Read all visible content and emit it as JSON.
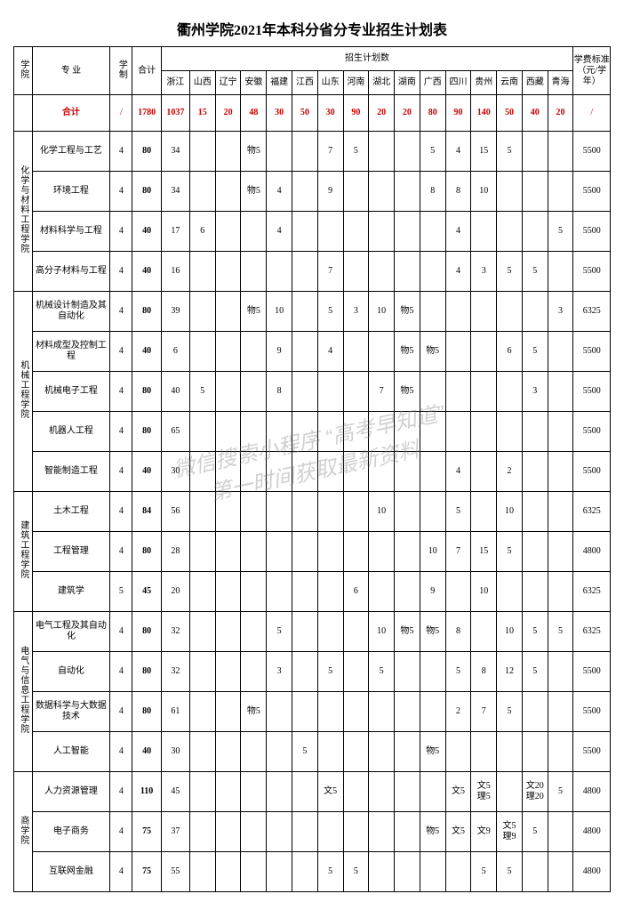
{
  "title": "衢州学院2021年本科分省分专业招生计划表",
  "header": {
    "college": "学院",
    "major": "专 业",
    "schooling": "学制",
    "total": "合计",
    "plan_group": "招生计划数",
    "fee": "学费标准（元/学年）",
    "provinces": [
      "浙江",
      "山西",
      "辽宁",
      "安徽",
      "福建",
      "江西",
      "山东",
      "河南",
      "湖北",
      "湖南",
      "广西",
      "四川",
      "贵州",
      "云南",
      "西藏",
      "青海"
    ]
  },
  "sum_row": {
    "label": "合计",
    "schooling": "/",
    "total": "1780",
    "cells": [
      "1037",
      "15",
      "20",
      "48",
      "30",
      "50",
      "30",
      "90",
      "20",
      "20",
      "80",
      "90",
      "140",
      "50",
      "40",
      "20"
    ],
    "fee": "/"
  },
  "groups": [
    {
      "college": "化学与材料工程学院",
      "rows": [
        {
          "major": "化学工程与工艺",
          "sch": "4",
          "tot": "80",
          "c": [
            "34",
            "",
            "",
            "物5",
            "",
            "",
            "7",
            "5",
            "",
            "",
            "5",
            "4",
            "15",
            "5",
            "",
            ""
          ],
          "fee": "5500"
        },
        {
          "major": "环境工程",
          "sch": "4",
          "tot": "80",
          "c": [
            "34",
            "",
            "",
            "物5",
            "4",
            "",
            "9",
            "",
            "",
            "",
            "8",
            "8",
            "10",
            "",
            "",
            ""
          ],
          "fee": "5500"
        },
        {
          "major": "材料科学与工程",
          "sch": "4",
          "tot": "40",
          "c": [
            "17",
            "6",
            "",
            "",
            "4",
            "",
            "",
            "",
            "",
            "",
            "",
            "4",
            "",
            "",
            "",
            "5"
          ],
          "fee": "5500"
        },
        {
          "major": "高分子材料与工程",
          "sch": "4",
          "tot": "40",
          "c": [
            "16",
            "",
            "",
            "",
            "",
            "",
            "7",
            "",
            "",
            "",
            "",
            "4",
            "3",
            "5",
            "5",
            ""
          ],
          "fee": "5500"
        }
      ]
    },
    {
      "college": "机械工程学院",
      "rows": [
        {
          "major": "机械设计制造及其自动化",
          "sch": "4",
          "tot": "80",
          "c": [
            "39",
            "",
            "",
            "物5",
            "10",
            "",
            "5",
            "3",
            "10",
            "物5",
            "",
            "",
            "",
            "",
            "",
            "3"
          ],
          "fee": "6325"
        },
        {
          "major": "材料成型及控制工程",
          "sch": "4",
          "tot": "40",
          "c": [
            "6",
            "",
            "",
            "",
            "9",
            "",
            "4",
            "",
            "",
            "物5",
            "物5",
            "",
            "",
            "6",
            "5",
            ""
          ],
          "fee": "5500"
        },
        {
          "major": "机械电子工程",
          "sch": "4",
          "tot": "80",
          "c": [
            "40",
            "5",
            "",
            "",
            "8",
            "",
            "",
            "",
            "7",
            "物5",
            "",
            "",
            "",
            "",
            "3",
            ""
          ],
          "fee": "5500"
        },
        {
          "major": "机器人工程",
          "sch": "4",
          "tot": "80",
          "c": [
            "65",
            "",
            "",
            "",
            "",
            "",
            "",
            "",
            "",
            "",
            "",
            "",
            "",
            "",
            "",
            ""
          ],
          "fee": "5500"
        },
        {
          "major": "智能制造工程",
          "sch": "4",
          "tot": "40",
          "c": [
            "30",
            "",
            "",
            "",
            "",
            "",
            "",
            "",
            "",
            "",
            "",
            "4",
            "",
            "2",
            "",
            ""
          ],
          "fee": "5500"
        }
      ]
    },
    {
      "college": "建筑工程学院",
      "rows": [
        {
          "major": "土木工程",
          "sch": "4",
          "tot": "84",
          "c": [
            "56",
            "",
            "",
            "",
            "",
            "",
            "",
            "",
            "10",
            "",
            "",
            "5",
            "",
            "10",
            "",
            ""
          ],
          "fee": "6325"
        },
        {
          "major": "工程管理",
          "sch": "4",
          "tot": "80",
          "c": [
            "28",
            "",
            "",
            "",
            "",
            "",
            "",
            "",
            "",
            "",
            "10",
            "7",
            "15",
            "5",
            "",
            ""
          ],
          "fee": "4800"
        },
        {
          "major": "建筑学",
          "sch": "5",
          "tot": "45",
          "c": [
            "20",
            "",
            "",
            "",
            "",
            "",
            "",
            "6",
            "",
            "",
            "9",
            "",
            "10",
            "",
            "",
            ""
          ],
          "fee": "6325"
        }
      ]
    },
    {
      "college": "电气与信息工程学院",
      "rows": [
        {
          "major": "电气工程及其自动化",
          "sch": "4",
          "tot": "80",
          "c": [
            "32",
            "",
            "",
            "",
            "5",
            "",
            "",
            "",
            "10",
            "物5",
            "物5",
            "8",
            "",
            "10",
            "5",
            "5"
          ],
          "fee": "6325"
        },
        {
          "major": "自动化",
          "sch": "4",
          "tot": "80",
          "c": [
            "32",
            "",
            "",
            "",
            "3",
            "",
            "5",
            "",
            "5",
            "",
            "",
            "5",
            "8",
            "12",
            "5",
            ""
          ],
          "fee": "5500"
        },
        {
          "major": "数据科学与大数据技术",
          "sch": "4",
          "tot": "80",
          "c": [
            "61",
            "",
            "",
            "物5",
            "",
            "",
            "",
            "",
            "",
            "",
            "",
            "2",
            "7",
            "5",
            "",
            ""
          ],
          "fee": "5500"
        },
        {
          "major": "人工智能",
          "sch": "4",
          "tot": "40",
          "c": [
            "30",
            "",
            "",
            "",
            "",
            "5",
            "",
            "",
            "",
            "",
            "物5",
            "",
            "",
            "",
            "",
            ""
          ],
          "fee": "5500"
        }
      ]
    },
    {
      "college": "商学院",
      "rows": [
        {
          "major": "人力资源管理",
          "sch": "4",
          "tot": "110",
          "c": [
            "45",
            "",
            "",
            "",
            "",
            "",
            "文5",
            "",
            "",
            "",
            "",
            "文5",
            "文5\n理5",
            "",
            "文20\n理20",
            "5"
          ],
          "fee": "4800"
        },
        {
          "major": "电子商务",
          "sch": "4",
          "tot": "75",
          "c": [
            "37",
            "",
            "",
            "",
            "",
            "",
            "",
            "",
            "",
            "",
            "物5",
            "文5",
            "文9",
            "文5\n理9",
            "5",
            ""
          ],
          "fee": "4800"
        },
        {
          "major": "互联网金融",
          "sch": "4",
          "tot": "75",
          "c": [
            "55",
            "",
            "",
            "",
            "",
            "",
            "5",
            "5",
            "",
            "",
            "",
            "",
            "5",
            "5",
            "",
            ""
          ],
          "fee": "4800"
        }
      ]
    }
  ],
  "watermark": {
    "line1": "微信搜索小程序 “高考早知道”",
    "line2": "第一时间获取最新资料"
  }
}
